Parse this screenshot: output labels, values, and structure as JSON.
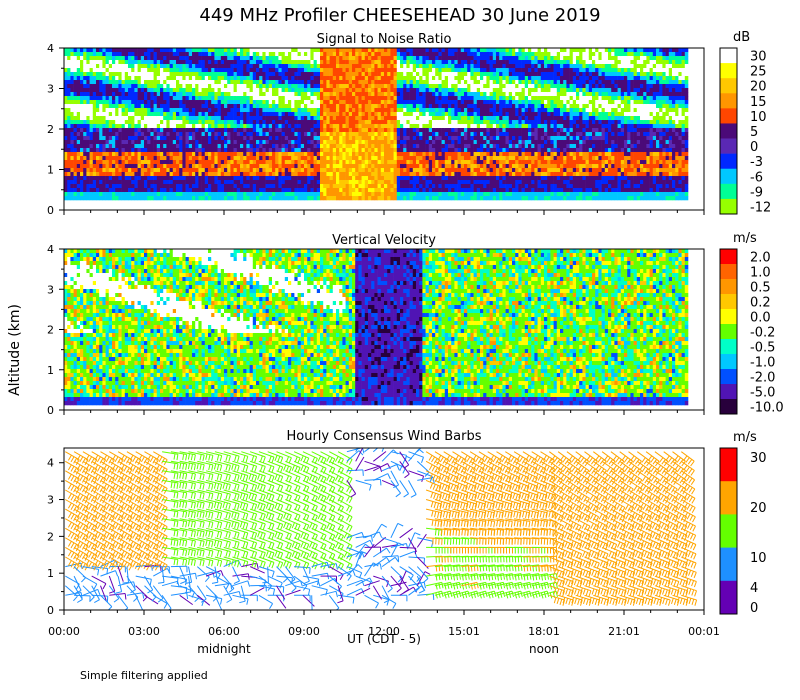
{
  "title": "449 MHz Profiler CHEESEHEAD 30 June 2019",
  "ylabel": "Altitude (km)",
  "xlabel": "UT  (CDT - 5)",
  "x_ticks": [
    "00:00",
    "03:00",
    "06:00",
    "09:00",
    "12:00",
    "15:01",
    "18:01",
    "21:01",
    "00:01"
  ],
  "local_labels": {
    "midnight": "midnight",
    "noon": "noon"
  },
  "footnote": "Simple filtering applied",
  "colors": {
    "axis": "#000000",
    "white": "#ffffff"
  },
  "chart_data": [
    {
      "type": "heatmap",
      "title": "Signal to Noise Ratio",
      "x_range_hours": [
        0,
        24
      ],
      "y_range_km": [
        0,
        4
      ],
      "y_ticks": [
        "0",
        "1",
        "2",
        "3",
        "4"
      ],
      "colorbar": {
        "unit": "dB",
        "labels": [
          "30",
          "25",
          "20",
          "15",
          "10",
          "5",
          "0",
          "-3",
          "-6",
          "-9",
          "-12"
        ],
        "colors": [
          "#ffffff",
          "#ffff00",
          "#ffc800",
          "#ff9600",
          "#ff4600",
          "#4b0a78",
          "#5a28b4",
          "#0028ff",
          "#00c8ff",
          "#00ff96",
          "#96ff00"
        ]
      }
    },
    {
      "type": "heatmap",
      "title": "Vertical Velocity",
      "x_range_hours": [
        0,
        24
      ],
      "y_range_km": [
        0,
        4
      ],
      "y_ticks": [
        "0",
        "1",
        "2",
        "3",
        "4"
      ],
      "colorbar": {
        "unit": "m/s",
        "labels": [
          "2.0",
          "1.0",
          "0.5",
          "0.2",
          "0.0",
          "-0.2",
          "-0.5",
          "-1.0",
          "-2.0",
          "-5.0",
          "-10.0"
        ],
        "colors": [
          "#ff0000",
          "#ff6400",
          "#ff9600",
          "#ffc800",
          "#ffff00",
          "#64ff00",
          "#00ffc8",
          "#00c8ff",
          "#0050ff",
          "#5014b4",
          "#28003c"
        ]
      }
    },
    {
      "type": "scatter",
      "title": "Hourly Consensus Wind Barbs",
      "x_range_hours": [
        0,
        24
      ],
      "y_range_km": [
        0,
        4.4
      ],
      "y_ticks": [
        "0",
        "1",
        "2",
        "3",
        "4"
      ],
      "colorbar": {
        "unit": "m/s",
        "labels": [
          "30",
          "20",
          "10",
          "4",
          "0"
        ],
        "label_values": [
          30,
          20,
          10,
          4,
          0
        ],
        "colors": [
          "#ff0000",
          "#ffa500",
          "#64ff00",
          "#1e90ff",
          "#6400b4"
        ]
      }
    }
  ]
}
